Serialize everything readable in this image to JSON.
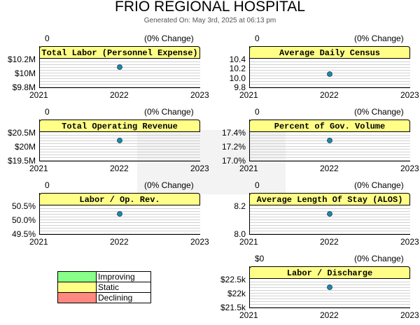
{
  "header": {
    "title": "FRIO REGIONAL HOSPITAL",
    "subtitle": "Generated On: May 3rd, 2025 at 06:13 pm"
  },
  "colors": {
    "improving": "#88ff88",
    "static": "#ffff88",
    "declining": "#ff8880",
    "title_box": "#ffff88",
    "point": "#1f86a8"
  },
  "legend": [
    {
      "label": "Improving",
      "color": "#88ff88"
    },
    {
      "label": "Static",
      "color": "#ffff88"
    },
    {
      "label": "Declining",
      "color": "#ff8880"
    }
  ],
  "chart_data": [
    {
      "type": "scatter",
      "title": "Total Labor (Personnel Expense)",
      "value_label": "0",
      "change_label": "(0% Change)",
      "status": "static",
      "x_ticks": [
        "2021",
        "2022",
        "2023"
      ],
      "y_ticks": [
        "$10.2M",
        "$10M",
        "$9.8M"
      ],
      "ylim": [
        9800000,
        10200000
      ],
      "points": [
        {
          "x": "2022",
          "y": 10000000
        }
      ]
    },
    {
      "type": "scatter",
      "title": "Average Daily Census",
      "value_label": "0",
      "change_label": "(0% Change)",
      "status": "static",
      "x_ticks": [
        "2021",
        "2022",
        "2023"
      ],
      "y_ticks": [
        "10.4",
        "10.2",
        "10.0",
        "9.8"
      ],
      "ylim": [
        9.8,
        10.4
      ],
      "points": [
        {
          "x": "2022",
          "y": 10.0
        }
      ]
    },
    {
      "type": "scatter",
      "title": "Total Operating Revenue",
      "value_label": "0",
      "change_label": "(0% Change)",
      "status": "static",
      "x_ticks": [
        "2021",
        "2022",
        "2023"
      ],
      "y_ticks": [
        "$20.5M",
        "$20M",
        "$19.5M"
      ],
      "ylim": [
        19500000,
        20500000
      ],
      "points": [
        {
          "x": "2022",
          "y": 20000000
        }
      ]
    },
    {
      "type": "scatter",
      "title": "Percent of Gov. Volume",
      "value_label": "0",
      "change_label": "(0% Change)",
      "status": "static",
      "x_ticks": [
        "2021",
        "2022",
        "2023"
      ],
      "y_ticks": [
        "17.4%",
        "17.2%",
        "17.0%"
      ],
      "ylim": [
        17.0,
        17.4
      ],
      "points": [
        {
          "x": "2022",
          "y": 17.2
        }
      ]
    },
    {
      "type": "scatter",
      "title": "Labor / Op. Rev.",
      "value_label": "0",
      "change_label": "(0% Change)",
      "status": "static",
      "x_ticks": [
        "2021",
        "2022",
        "2023"
      ],
      "y_ticks": [
        "50.5%",
        "50.0%",
        "49.5%"
      ],
      "ylim": [
        49.5,
        50.5
      ],
      "points": [
        {
          "x": "2022",
          "y": 50.0
        }
      ]
    },
    {
      "type": "scatter",
      "title": "Average Length Of Stay (ALOS)",
      "value_label": "0",
      "change_label": "(0% Change)",
      "status": "static",
      "x_ticks": [
        "2021",
        "2022",
        "2023"
      ],
      "y_ticks": [
        "8.2",
        "8.0"
      ],
      "ylim": [
        8.0,
        8.2
      ],
      "points": [
        {
          "x": "2022",
          "y": 8.1
        }
      ]
    },
    {
      "type": "scatter",
      "title": "Labor / Discharge",
      "value_label": "$0",
      "change_label": "(0% Change)",
      "status": "static",
      "x_ticks": [
        "2021",
        "2022",
        "2023"
      ],
      "y_ticks": [
        "$22.5k",
        "$22k",
        "$21.5k"
      ],
      "ylim": [
        21500,
        22500
      ],
      "points": [
        {
          "x": "2022",
          "y": 22000
        }
      ]
    }
  ]
}
